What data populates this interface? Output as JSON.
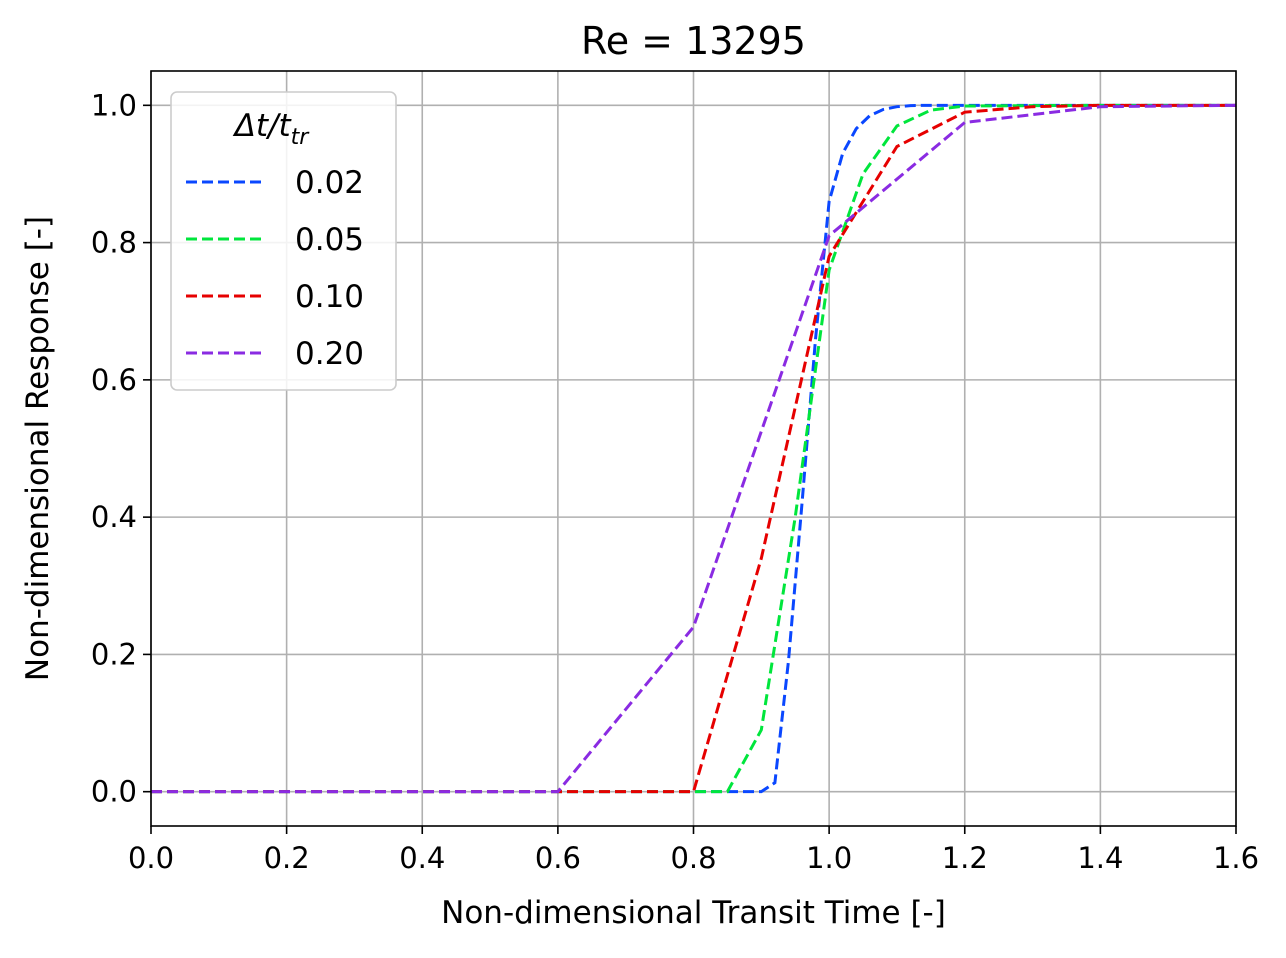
{
  "chart_data": {
    "type": "line",
    "title": "Re = 13295",
    "xlabel": "Non-dimensional Transit Time [-]",
    "ylabel": "Non-dimensional Response [-]",
    "xlim": [
      0.0,
      1.6
    ],
    "ylim": [
      -0.05,
      1.05
    ],
    "xticks": [
      "0.0",
      "0.2",
      "0.4",
      "0.6",
      "0.8",
      "1.0",
      "1.2",
      "1.4",
      "1.6"
    ],
    "yticks": [
      "0.0",
      "0.2",
      "0.4",
      "0.6",
      "0.8",
      "1.0"
    ],
    "grid": true,
    "legend": {
      "title_base": "Δt/t",
      "title_sub": "tr",
      "placement": "upper-left"
    },
    "series": [
      {
        "name": "0.02",
        "color": "#0a47ff",
        "x": [
          0.0,
          0.2,
          0.4,
          0.6,
          0.8,
          0.82,
          0.84,
          0.86,
          0.88,
          0.9,
          0.92,
          0.94,
          0.96,
          0.98,
          1.0,
          1.02,
          1.04,
          1.06,
          1.08,
          1.1,
          1.12,
          1.14,
          1.2,
          1.4,
          1.6
        ],
        "y": [
          0.0,
          0.0,
          0.0,
          0.0,
          0.0,
          0.0,
          0.0,
          0.0,
          0.0,
          0.0,
          0.013,
          0.19,
          0.42,
          0.66,
          0.86,
          0.93,
          0.966,
          0.985,
          0.994,
          0.998,
          0.9995,
          1.0,
          1.0,
          1.0,
          1.0
        ]
      },
      {
        "name": "0.05",
        "color": "#00e63c",
        "x": [
          0.0,
          0.2,
          0.4,
          0.6,
          0.8,
          0.85,
          0.9,
          0.95,
          1.0,
          1.05,
          1.1,
          1.15,
          1.2,
          1.4,
          1.6
        ],
        "y": [
          0.0,
          0.0,
          0.0,
          0.0,
          0.0,
          0.0,
          0.09,
          0.4,
          0.76,
          0.9,
          0.97,
          0.993,
          0.999,
          1.0,
          1.0
        ]
      },
      {
        "name": "0.10",
        "color": "#e60000",
        "x": [
          0.0,
          0.2,
          0.4,
          0.6,
          0.8,
          0.9,
          1.0,
          1.1,
          1.2,
          1.3,
          1.4,
          1.5,
          1.6
        ],
        "y": [
          0.0,
          0.0,
          0.0,
          0.0,
          0.0,
          0.34,
          0.78,
          0.94,
          0.99,
          0.998,
          1.0,
          1.0,
          1.0
        ]
      },
      {
        "name": "0.20",
        "color": "#8a2be2",
        "x": [
          0.0,
          0.2,
          0.4,
          0.6,
          0.8,
          1.0,
          1.2,
          1.4,
          1.6
        ],
        "y": [
          0.0,
          0.0,
          0.0,
          0.0,
          0.24,
          0.81,
          0.975,
          0.998,
          1.0
        ]
      }
    ]
  }
}
